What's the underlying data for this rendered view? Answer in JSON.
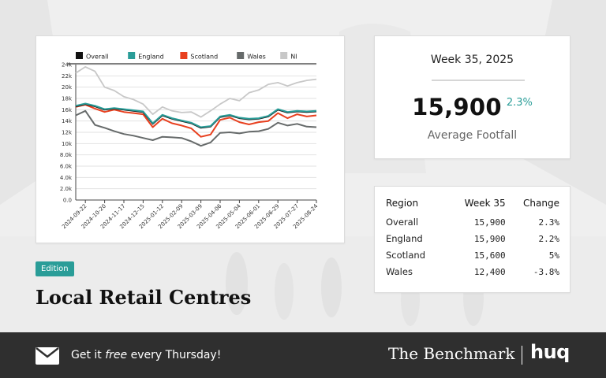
{
  "kpi": {
    "week_label": "Week 35, 2025",
    "value": "15,900",
    "change": "2.3%",
    "label": "Average Footfall",
    "accent_color": "#2a9d98"
  },
  "table": {
    "headers": [
      "Region",
      "Week 35",
      "Change"
    ],
    "rows": [
      [
        "Overall",
        "15,900",
        "2.3%"
      ],
      [
        "England",
        "15,900",
        "2.2%"
      ],
      [
        "Scotland",
        "15,600",
        "5%"
      ],
      [
        "Wales",
        "12,400",
        "-3.8%"
      ]
    ]
  },
  "edition_label": "Edition",
  "headline": "Local Retail Centres",
  "footer": {
    "cta_prefix": "Get it ",
    "cta_emph": "free",
    "cta_suffix": " every Thursday!",
    "brand": "The Benchmark",
    "logo": "huq",
    "mail_icon": "envelope-icon"
  },
  "chart_data": {
    "type": "line",
    "title": "",
    "xlabel": "",
    "ylabel": "",
    "ylim": [
      0,
      24000
    ],
    "y_ticks": [
      "0.0",
      "2.0k",
      "4.0k",
      "6.0k",
      "8.0k",
      "10k",
      "12k",
      "14k",
      "16k",
      "18k",
      "20k",
      "22k",
      "24k"
    ],
    "x_tick_labels": [
      "2024-09-22",
      "2024-10-20",
      "2024-11-17",
      "2024-12-15",
      "2025-01-12",
      "2025-02-09",
      "2025-03-09",
      "2025-04-06",
      "2025-05-04",
      "2025-06-01",
      "2025-06-29",
      "2025-07-27",
      "2025-08-24"
    ],
    "legend_position": "top",
    "grid": "horizontal",
    "x": [
      "2024-09-08",
      "2024-09-22",
      "2024-10-06",
      "2024-10-20",
      "2024-11-03",
      "2024-11-17",
      "2024-12-01",
      "2024-12-15",
      "2024-12-29",
      "2025-01-12",
      "2025-01-26",
      "2025-02-09",
      "2025-02-23",
      "2025-03-09",
      "2025-03-23",
      "2025-04-06",
      "2025-04-20",
      "2025-05-04",
      "2025-05-18",
      "2025-06-01",
      "2025-06-15",
      "2025-06-29",
      "2025-07-13",
      "2025-07-27",
      "2025-08-10",
      "2025-08-24"
    ],
    "series": [
      {
        "name": "Overall",
        "color": "#111111",
        "values": [
          16600,
          17000,
          16600,
          16000,
          16200,
          16000,
          15800,
          15600,
          13500,
          15000,
          14400,
          14000,
          13600,
          12800,
          13000,
          14700,
          15000,
          14500,
          14300,
          14400,
          14800,
          16000,
          15500,
          15700,
          15600,
          15700
        ]
      },
      {
        "name": "England",
        "color": "#2a9d98",
        "values": [
          16700,
          17100,
          16700,
          16100,
          16300,
          16100,
          15900,
          15700,
          13600,
          15100,
          14500,
          14100,
          13700,
          12900,
          13100,
          14800,
          15100,
          14600,
          14400,
          14500,
          14900,
          16100,
          15600,
          15800,
          15700,
          15800
        ]
      },
      {
        "name": "Scotland",
        "color": "#e8401f",
        "values": [
          16500,
          16900,
          16200,
          15600,
          16000,
          15600,
          15400,
          15200,
          12900,
          14400,
          13600,
          13200,
          12700,
          11200,
          11600,
          14200,
          14600,
          13800,
          13400,
          13800,
          14000,
          15400,
          14500,
          15200,
          14800,
          15000
        ]
      },
      {
        "name": "Wales",
        "color": "#666a6a",
        "values": [
          15000,
          15800,
          13300,
          12800,
          12200,
          11700,
          11400,
          11000,
          10600,
          11200,
          11100,
          11000,
          10400,
          9600,
          10200,
          11900,
          12000,
          11800,
          12100,
          12200,
          12600,
          13700,
          13200,
          13500,
          13000,
          12900
        ]
      },
      {
        "name": "NI",
        "color": "#c8c8c8",
        "values": [
          22500,
          23600,
          22800,
          20000,
          19400,
          18300,
          17800,
          17000,
          15200,
          16500,
          15800,
          15500,
          15600,
          14700,
          15800,
          17000,
          18000,
          17600,
          19000,
          19500,
          20500,
          20800,
          20200,
          20800,
          21200,
          21400
        ]
      }
    ]
  }
}
